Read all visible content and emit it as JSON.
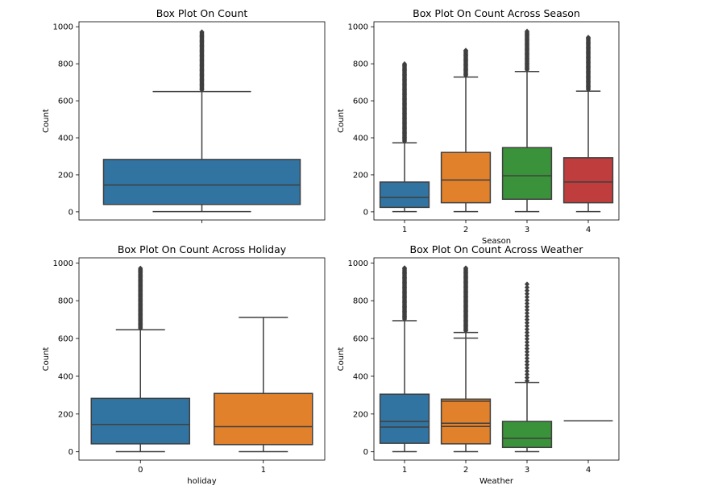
{
  "chart_data": [
    {
      "type": "box",
      "title": "Box Plot On Count",
      "xlabel": "",
      "ylabel": "Count",
      "ylim": [
        -44,
        1027
      ],
      "yticks": [
        0,
        200,
        400,
        600,
        800,
        1000
      ],
      "categories": [
        ""
      ],
      "boxes": [
        {
          "category": "",
          "color": "#3274a1",
          "min": 1,
          "q1": 40,
          "median": 145,
          "q3": 283,
          "whisker_high": 650,
          "outlier_max": 977
        }
      ]
    },
    {
      "type": "box",
      "title": "Box Plot On Count Across Season",
      "xlabel": "Season",
      "ylabel": "Count",
      "ylim": [
        -44,
        1027
      ],
      "yticks": [
        0,
        200,
        400,
        600,
        800,
        1000
      ],
      "categories": [
        "1",
        "2",
        "3",
        "4"
      ],
      "boxes": [
        {
          "category": "1",
          "color": "#3274a1",
          "min": 1,
          "q1": 24,
          "median": 78,
          "q3": 161,
          "whisker_high": 373,
          "outlier_max": 801
        },
        {
          "category": "2",
          "color": "#e1812c",
          "min": 1,
          "q1": 49,
          "median": 172,
          "q3": 321,
          "whisker_high": 728,
          "outlier_max": 873
        },
        {
          "category": "3",
          "color": "#3a923a",
          "min": 1,
          "q1": 68,
          "median": 195,
          "q3": 347,
          "whisker_high": 758,
          "outlier_max": 977
        },
        {
          "category": "4",
          "color": "#c03d3e",
          "min": 1,
          "q1": 49,
          "median": 161,
          "q3": 292,
          "whisker_high": 652,
          "outlier_max": 948
        }
      ]
    },
    {
      "type": "box",
      "title": "Box Plot On Count Across Holiday",
      "xlabel": "holiday",
      "ylabel": "Count",
      "ylim": [
        -44,
        1027
      ],
      "yticks": [
        0,
        200,
        400,
        600,
        800,
        1000
      ],
      "categories": [
        "0",
        "1"
      ],
      "boxes": [
        {
          "category": "0",
          "color": "#3274a1",
          "min": 1,
          "q1": 42,
          "median": 145,
          "q3": 283,
          "whisker_high": 646,
          "outlier_max": 977
        },
        {
          "category": "1",
          "color": "#e1812c",
          "min": 1,
          "q1": 38,
          "median": 133,
          "q3": 309,
          "whisker_high": 712,
          "outlier_max": null
        }
      ]
    },
    {
      "type": "box",
      "title": "Box Plot On Count Across Weather",
      "xlabel": "Weather",
      "ylabel": "Count",
      "ylim": [
        -44,
        1027
      ],
      "yticks": [
        0,
        200,
        400,
        600,
        800,
        1000
      ],
      "categories": [
        "1",
        "2",
        "3",
        "4"
      ],
      "boxes": [
        {
          "category": "1",
          "color": "#3274a1",
          "min": 1,
          "q1": 45,
          "median": 161,
          "q3": 305,
          "whisker_high": 694,
          "outlier_max": 977,
          "second_median": 131
        },
        {
          "category": "2",
          "color": "#e1812c",
          "min": 1,
          "q1": 42,
          "median": 151,
          "q3": 279,
          "whisker_high": 632,
          "outlier_max": 977,
          "second_median": 134,
          "second_q3": 268,
          "second_whisker_high": 602
        },
        {
          "category": "3",
          "color": "#3a923a",
          "min": 1,
          "q1": 23,
          "median": 71,
          "q3": 161,
          "whisker_high": 367,
          "outlier_max": 891
        },
        {
          "category": "4",
          "color": "#c03d3e",
          "min": 164,
          "q1": 164,
          "median": 164,
          "q3": 164,
          "whisker_high": 164,
          "outlier_max": null
        }
      ]
    }
  ]
}
